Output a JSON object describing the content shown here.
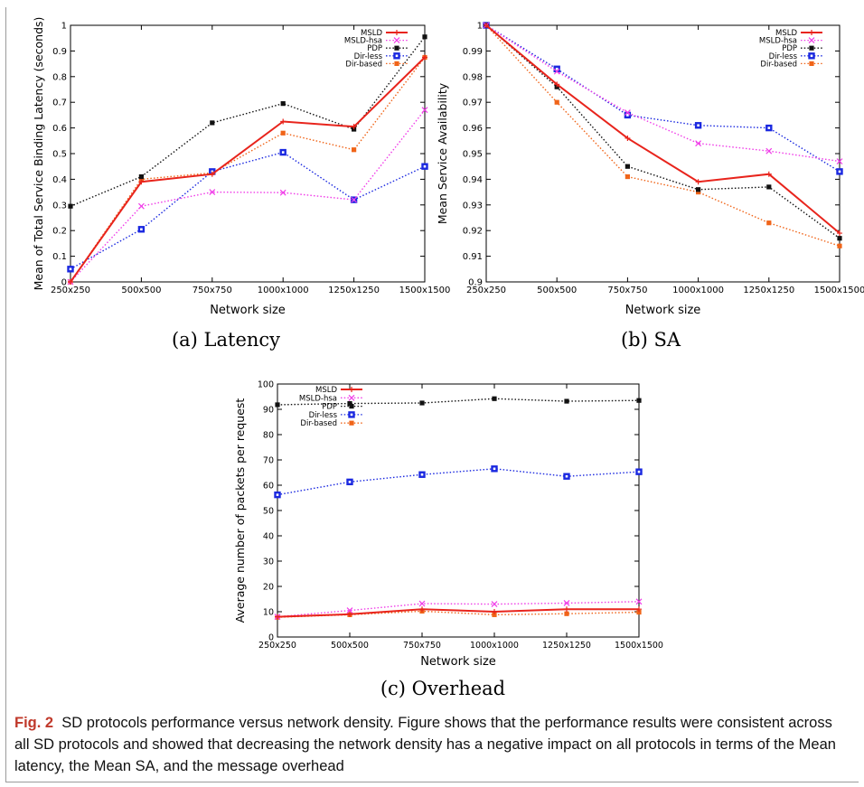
{
  "chart_data": [
    {
      "type": "line",
      "id": "latency",
      "ylabel": "Mean of Total Service Binding Latency (seconds)",
      "xlabel": "Network size",
      "categories": [
        "250x250",
        "500x500",
        "750x750",
        "1000x1000",
        "1250x1250",
        "1500x1500"
      ],
      "ylim": [
        0,
        1
      ],
      "yticks": [
        0,
        0.1,
        0.2,
        0.3,
        0.4,
        0.5,
        0.6,
        0.7,
        0.8,
        0.9,
        1
      ],
      "ytick_labels": [
        "0",
        "0.1",
        "0.2",
        "0.3",
        "0.4",
        "0.5",
        "0.6",
        "0.7",
        "0.8",
        "0.9",
        "1"
      ],
      "legend_position": "top-right",
      "grid": false,
      "series": [
        {
          "name": "MSLD",
          "color": "#e8241c",
          "marker": "plus",
          "style": "solid",
          "values": [
            0.0,
            0.39,
            0.42,
            0.625,
            0.605,
            0.875
          ]
        },
        {
          "name": "MSLD-hsa",
          "color": "#f03ce8",
          "marker": "x",
          "style": "dotted",
          "values": [
            0.0,
            0.295,
            0.35,
            0.348,
            0.32,
            0.67
          ]
        },
        {
          "name": "PDP",
          "color": "#111111",
          "marker": "square",
          "style": "dotted",
          "values": [
            0.295,
            0.41,
            0.62,
            0.695,
            0.595,
            0.955
          ]
        },
        {
          "name": "Dir-less",
          "color": "#1a28e0",
          "marker": "square-open",
          "style": "dotted",
          "values": [
            0.05,
            0.205,
            0.43,
            0.505,
            0.32,
            0.45
          ]
        },
        {
          "name": "Dir-based",
          "color": "#f06418",
          "marker": "square",
          "style": "dotted",
          "values": [
            0.0,
            0.4,
            0.425,
            0.58,
            0.515,
            0.875
          ]
        }
      ]
    },
    {
      "type": "line",
      "id": "sa",
      "ylabel": "Mean Service Availability",
      "xlabel": "Network size",
      "categories": [
        "250x250",
        "500x500",
        "750x750",
        "1000x1000",
        "1250x1250",
        "1500x1500"
      ],
      "ylim": [
        0.9,
        1
      ],
      "yticks": [
        0.9,
        0.91,
        0.92,
        0.93,
        0.94,
        0.95,
        0.96,
        0.97,
        0.98,
        0.99,
        1
      ],
      "ytick_labels": [
        "0.9",
        "0.91",
        "0.92",
        "0.93",
        "0.94",
        "0.95",
        "0.96",
        "0.97",
        "0.98",
        "0.99",
        "1"
      ],
      "legend_position": "top-right",
      "grid": false,
      "series": [
        {
          "name": "MSLD",
          "color": "#e8241c",
          "marker": "plus",
          "style": "solid",
          "values": [
            1.0,
            0.977,
            0.956,
            0.939,
            0.942,
            0.919
          ]
        },
        {
          "name": "MSLD-hsa",
          "color": "#f03ce8",
          "marker": "x",
          "style": "dotted",
          "values": [
            1.0,
            0.982,
            0.966,
            0.954,
            0.951,
            0.947
          ]
        },
        {
          "name": "PDP",
          "color": "#111111",
          "marker": "square",
          "style": "dotted",
          "values": [
            1.0,
            0.976,
            0.945,
            0.936,
            0.937,
            0.917
          ]
        },
        {
          "name": "Dir-less",
          "color": "#1a28e0",
          "marker": "square-open",
          "style": "dotted",
          "values": [
            1.0,
            0.983,
            0.965,
            0.961,
            0.96,
            0.943
          ]
        },
        {
          "name": "Dir-based",
          "color": "#f06418",
          "marker": "square",
          "style": "dotted",
          "values": [
            1.0,
            0.97,
            0.941,
            0.935,
            0.923,
            0.914
          ]
        }
      ]
    },
    {
      "type": "line",
      "id": "overhead",
      "ylabel": "Average number of packets per request",
      "xlabel": "Network size",
      "categories": [
        "250x250",
        "500x500",
        "750x750",
        "1000x1000",
        "1250x1250",
        "1500x1500"
      ],
      "ylim": [
        0,
        100
      ],
      "yticks": [
        0,
        10,
        20,
        30,
        40,
        50,
        60,
        70,
        80,
        90,
        100
      ],
      "ytick_labels": [
        "0",
        "10",
        "20",
        "30",
        "40",
        "50",
        "60",
        "70",
        "80",
        "90",
        "100"
      ],
      "legend_position": "top-left",
      "grid": false,
      "series": [
        {
          "name": "MSLD",
          "color": "#e8241c",
          "marker": "plus",
          "style": "solid",
          "values": [
            8,
            9,
            11,
            10,
            11,
            11
          ]
        },
        {
          "name": "MSLD-hsa",
          "color": "#f03ce8",
          "marker": "x",
          "style": "dotted",
          "values": [
            8,
            10.5,
            13.2,
            13,
            13.4,
            14
          ]
        },
        {
          "name": "PDP",
          "color": "#111111",
          "marker": "square",
          "style": "dotted",
          "values": [
            91.8,
            92.3,
            92.5,
            94.2,
            93.2,
            93.5
          ]
        },
        {
          "name": "Dir-less",
          "color": "#1a28e0",
          "marker": "square-open",
          "style": "dotted",
          "values": [
            56.2,
            61.3,
            64.2,
            66.5,
            63.5,
            65.3
          ]
        },
        {
          "name": "Dir-based",
          "color": "#f06418",
          "marker": "square",
          "style": "dotted",
          "values": [
            7.8,
            8.8,
            10.2,
            8.8,
            9.2,
            9.8
          ]
        }
      ]
    }
  ],
  "subcaptions": {
    "a": "(a)  Latency",
    "b": "(b)  SA",
    "c": "(c)  Overhead"
  },
  "caption": {
    "label": "Fig. 2",
    "text": "SD protocols performance versus network density. Figure shows that the performance results were consistent across all SD protocols and showed that decreasing the network density has a negative impact on all protocols in terms of the Mean latency, the Mean SA, and the message overhead"
  }
}
